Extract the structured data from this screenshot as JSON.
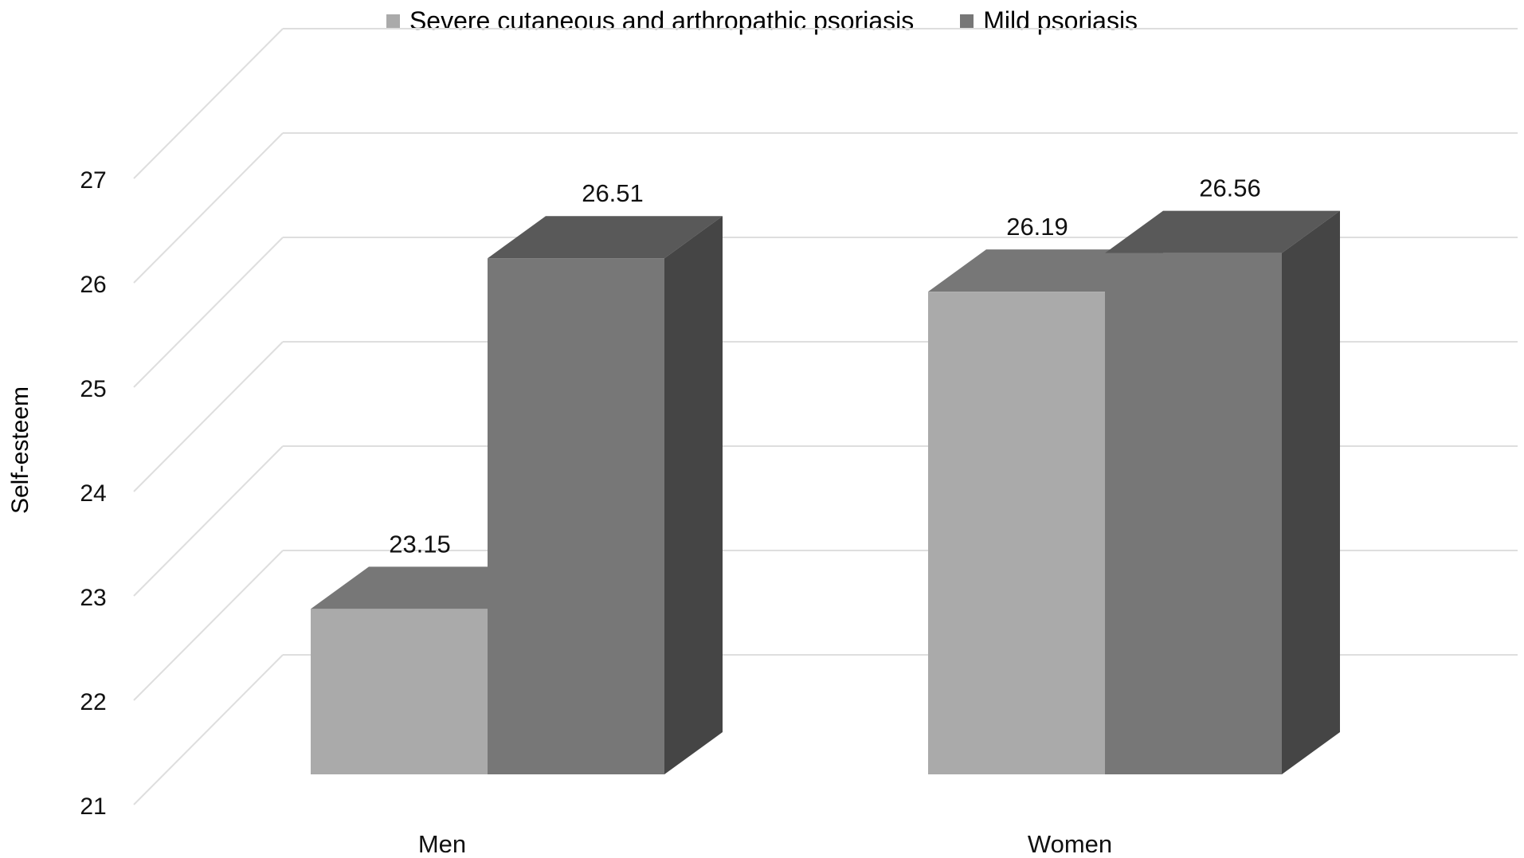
{
  "chart_data": {
    "type": "bar",
    "style": "3d-clustered-column",
    "categories": [
      "Men",
      "Women"
    ],
    "series": [
      {
        "name": "Severe cutaneous and arthropathic psoriasis",
        "values": [
          23.15,
          26.19
        ],
        "color": "#aaaaaa"
      },
      {
        "name": "Mild psoriasis",
        "values": [
          26.51,
          26.56
        ],
        "color": "#777777"
      }
    ],
    "data_labels": [
      [
        "23.15",
        "26.19"
      ],
      [
        "26.51",
        "26.56"
      ]
    ],
    "xlabel": "",
    "ylabel": "Self-esteem",
    "ylim": [
      21,
      27
    ],
    "yticks": [
      21,
      22,
      23,
      24,
      25,
      26,
      27
    ],
    "grid": true,
    "legend_position": "top"
  }
}
